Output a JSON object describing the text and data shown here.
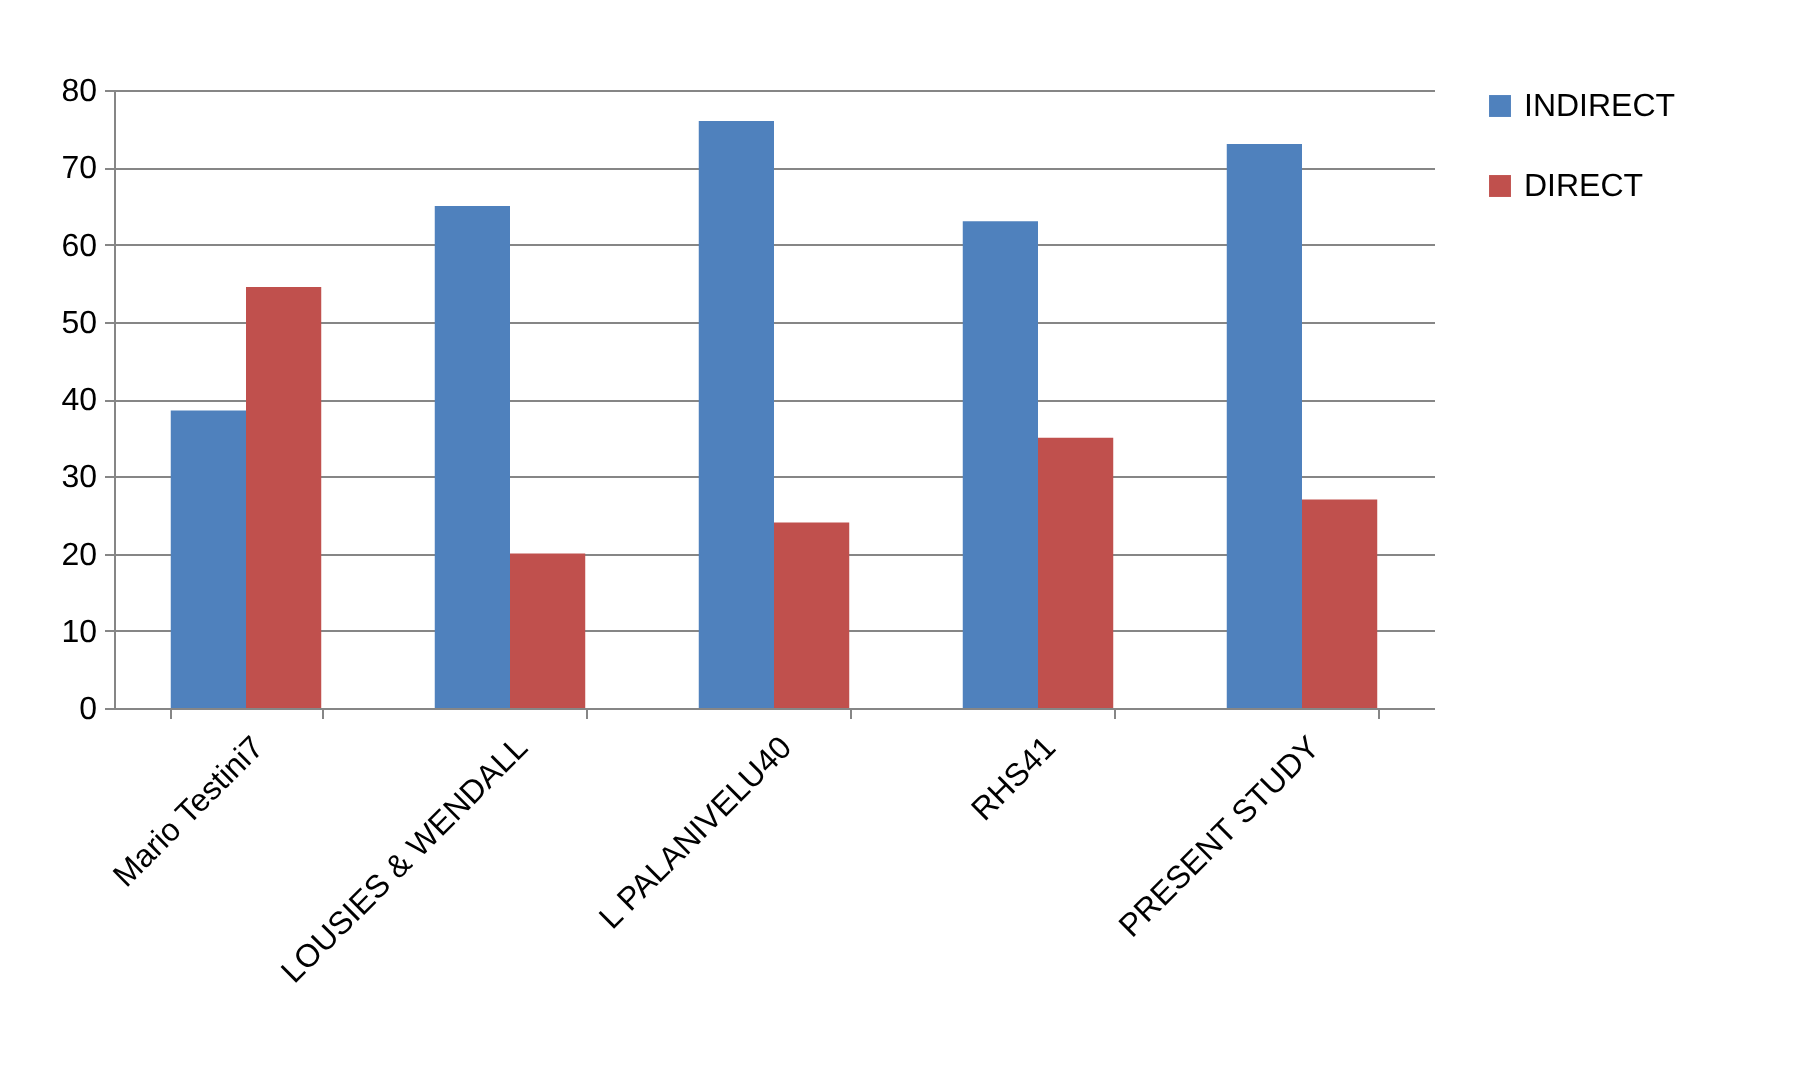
{
  "chart_data": {
    "type": "bar",
    "categories": [
      "Mario Testini7",
      "LOUSIES & WENDALL",
      "L PALANIVELU40",
      "RHS41",
      "PRESENT STUDY"
    ],
    "series": [
      {
        "name": "INDIRECT",
        "color": "#4f81bd",
        "values": [
          38.5,
          65,
          76,
          63,
          73
        ]
      },
      {
        "name": "DIRECT",
        "color": "#c0504d",
        "values": [
          54.5,
          20,
          24,
          35,
          27
        ]
      }
    ],
    "ylim": [
      0,
      80
    ],
    "yticks": [
      0,
      10,
      20,
      30,
      40,
      50,
      60,
      70,
      80
    ],
    "grid": "y",
    "legend": "right"
  }
}
